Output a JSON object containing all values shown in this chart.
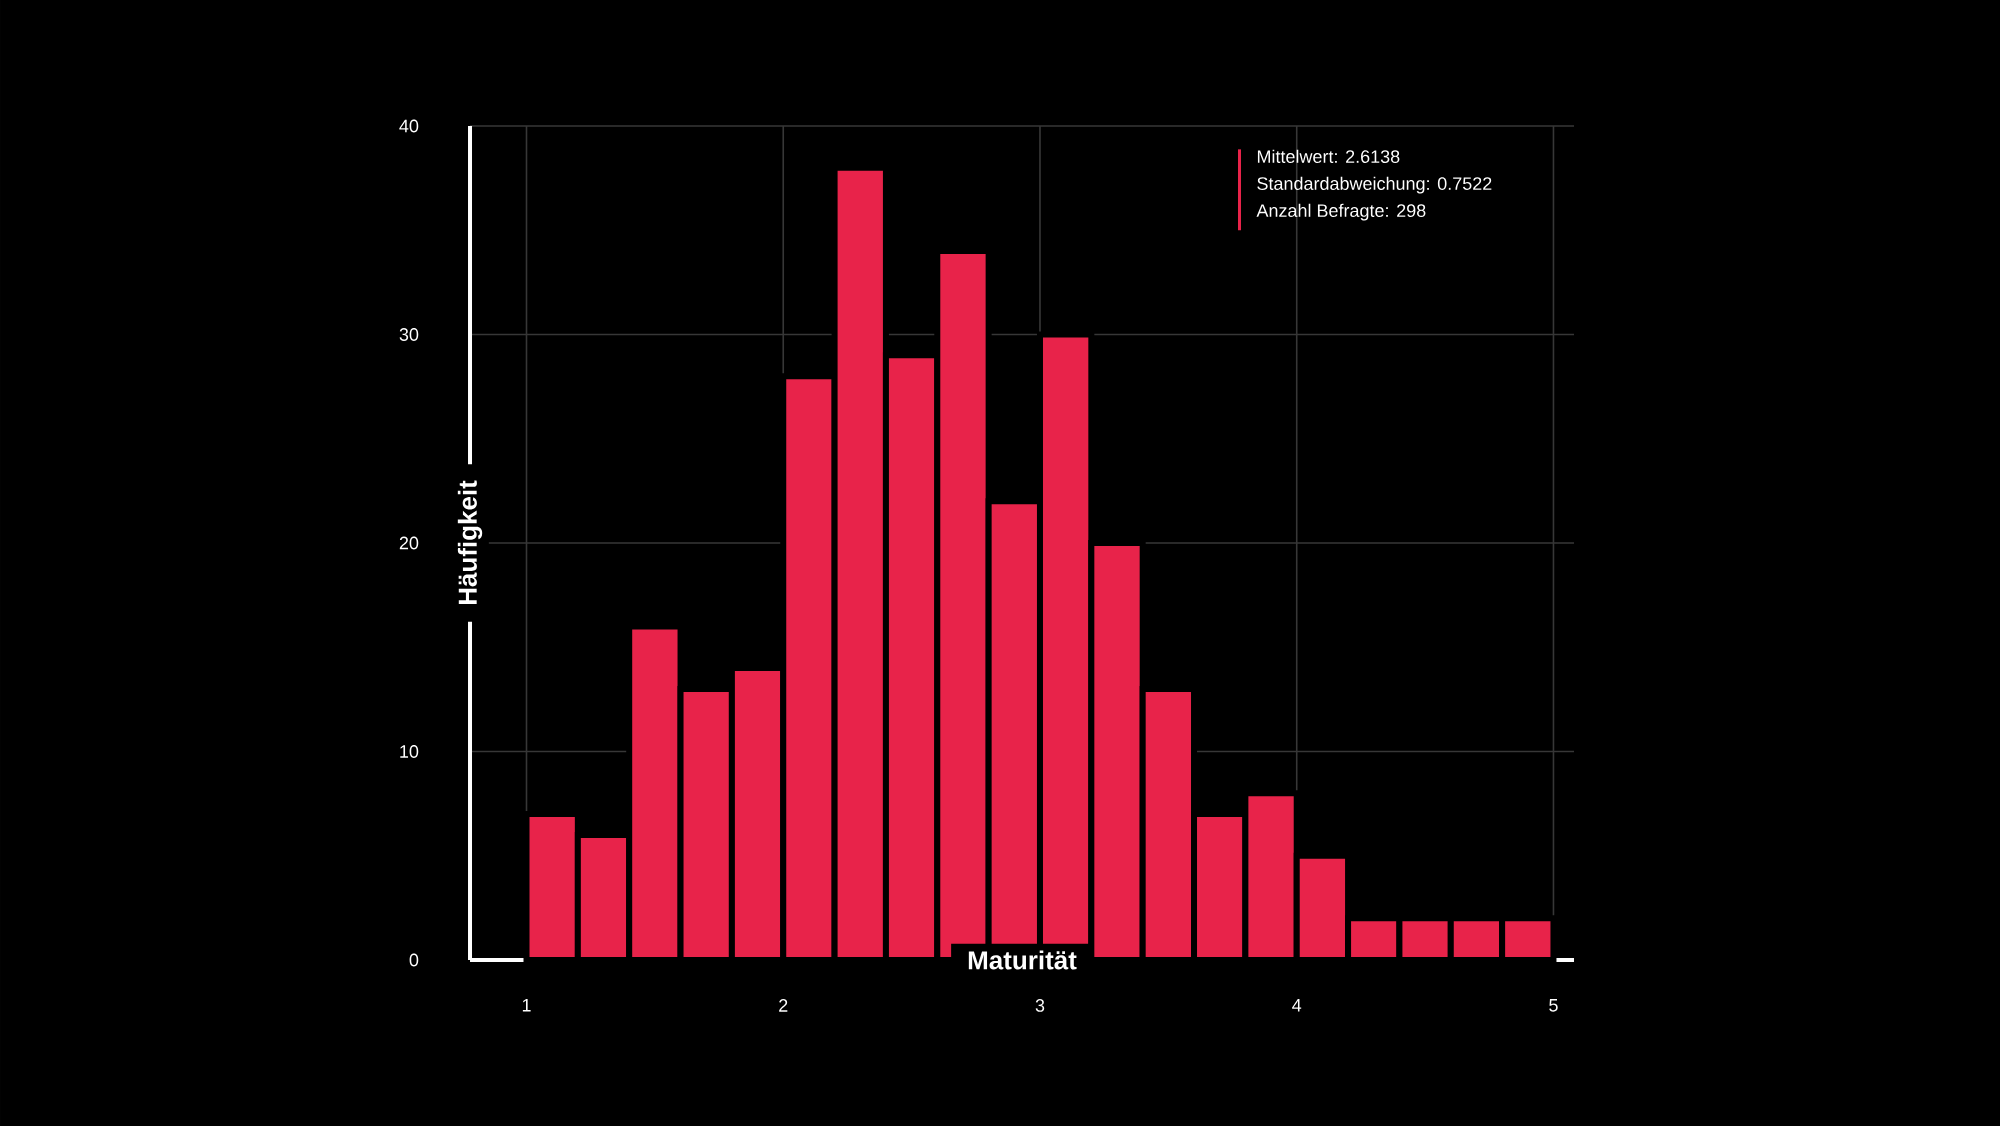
{
  "chart_data": {
    "type": "histogram",
    "xlabel": "Maturität",
    "ylabel": "Häufigkeit",
    "bins": [
      1,
      1.2,
      1.4,
      1.6,
      1.8,
      2,
      2.2,
      2.4,
      2.6,
      2.8,
      3,
      3.2,
      3.4,
      3.6,
      3.8,
      4,
      4.2,
      4.4,
      4.6,
      4.8,
      5
    ],
    "values": [
      7,
      6,
      16,
      13,
      14,
      28,
      38,
      29,
      34,
      22,
      30,
      20,
      13,
      7,
      8,
      5,
      2,
      2,
      2,
      2
    ],
    "color": "#e8234a",
    "xlim": [
      0.78,
      5.08
    ],
    "ylim": [
      0,
      40
    ],
    "xticks": [
      1,
      2,
      3,
      4,
      5
    ],
    "yticks": [
      0,
      10,
      20,
      30,
      40
    ],
    "grid": true,
    "annotations": [
      "Mittelwert: 2.6138",
      "Standardabweichung: 0.7522",
      "Anzahl Befragte: 298"
    ]
  }
}
